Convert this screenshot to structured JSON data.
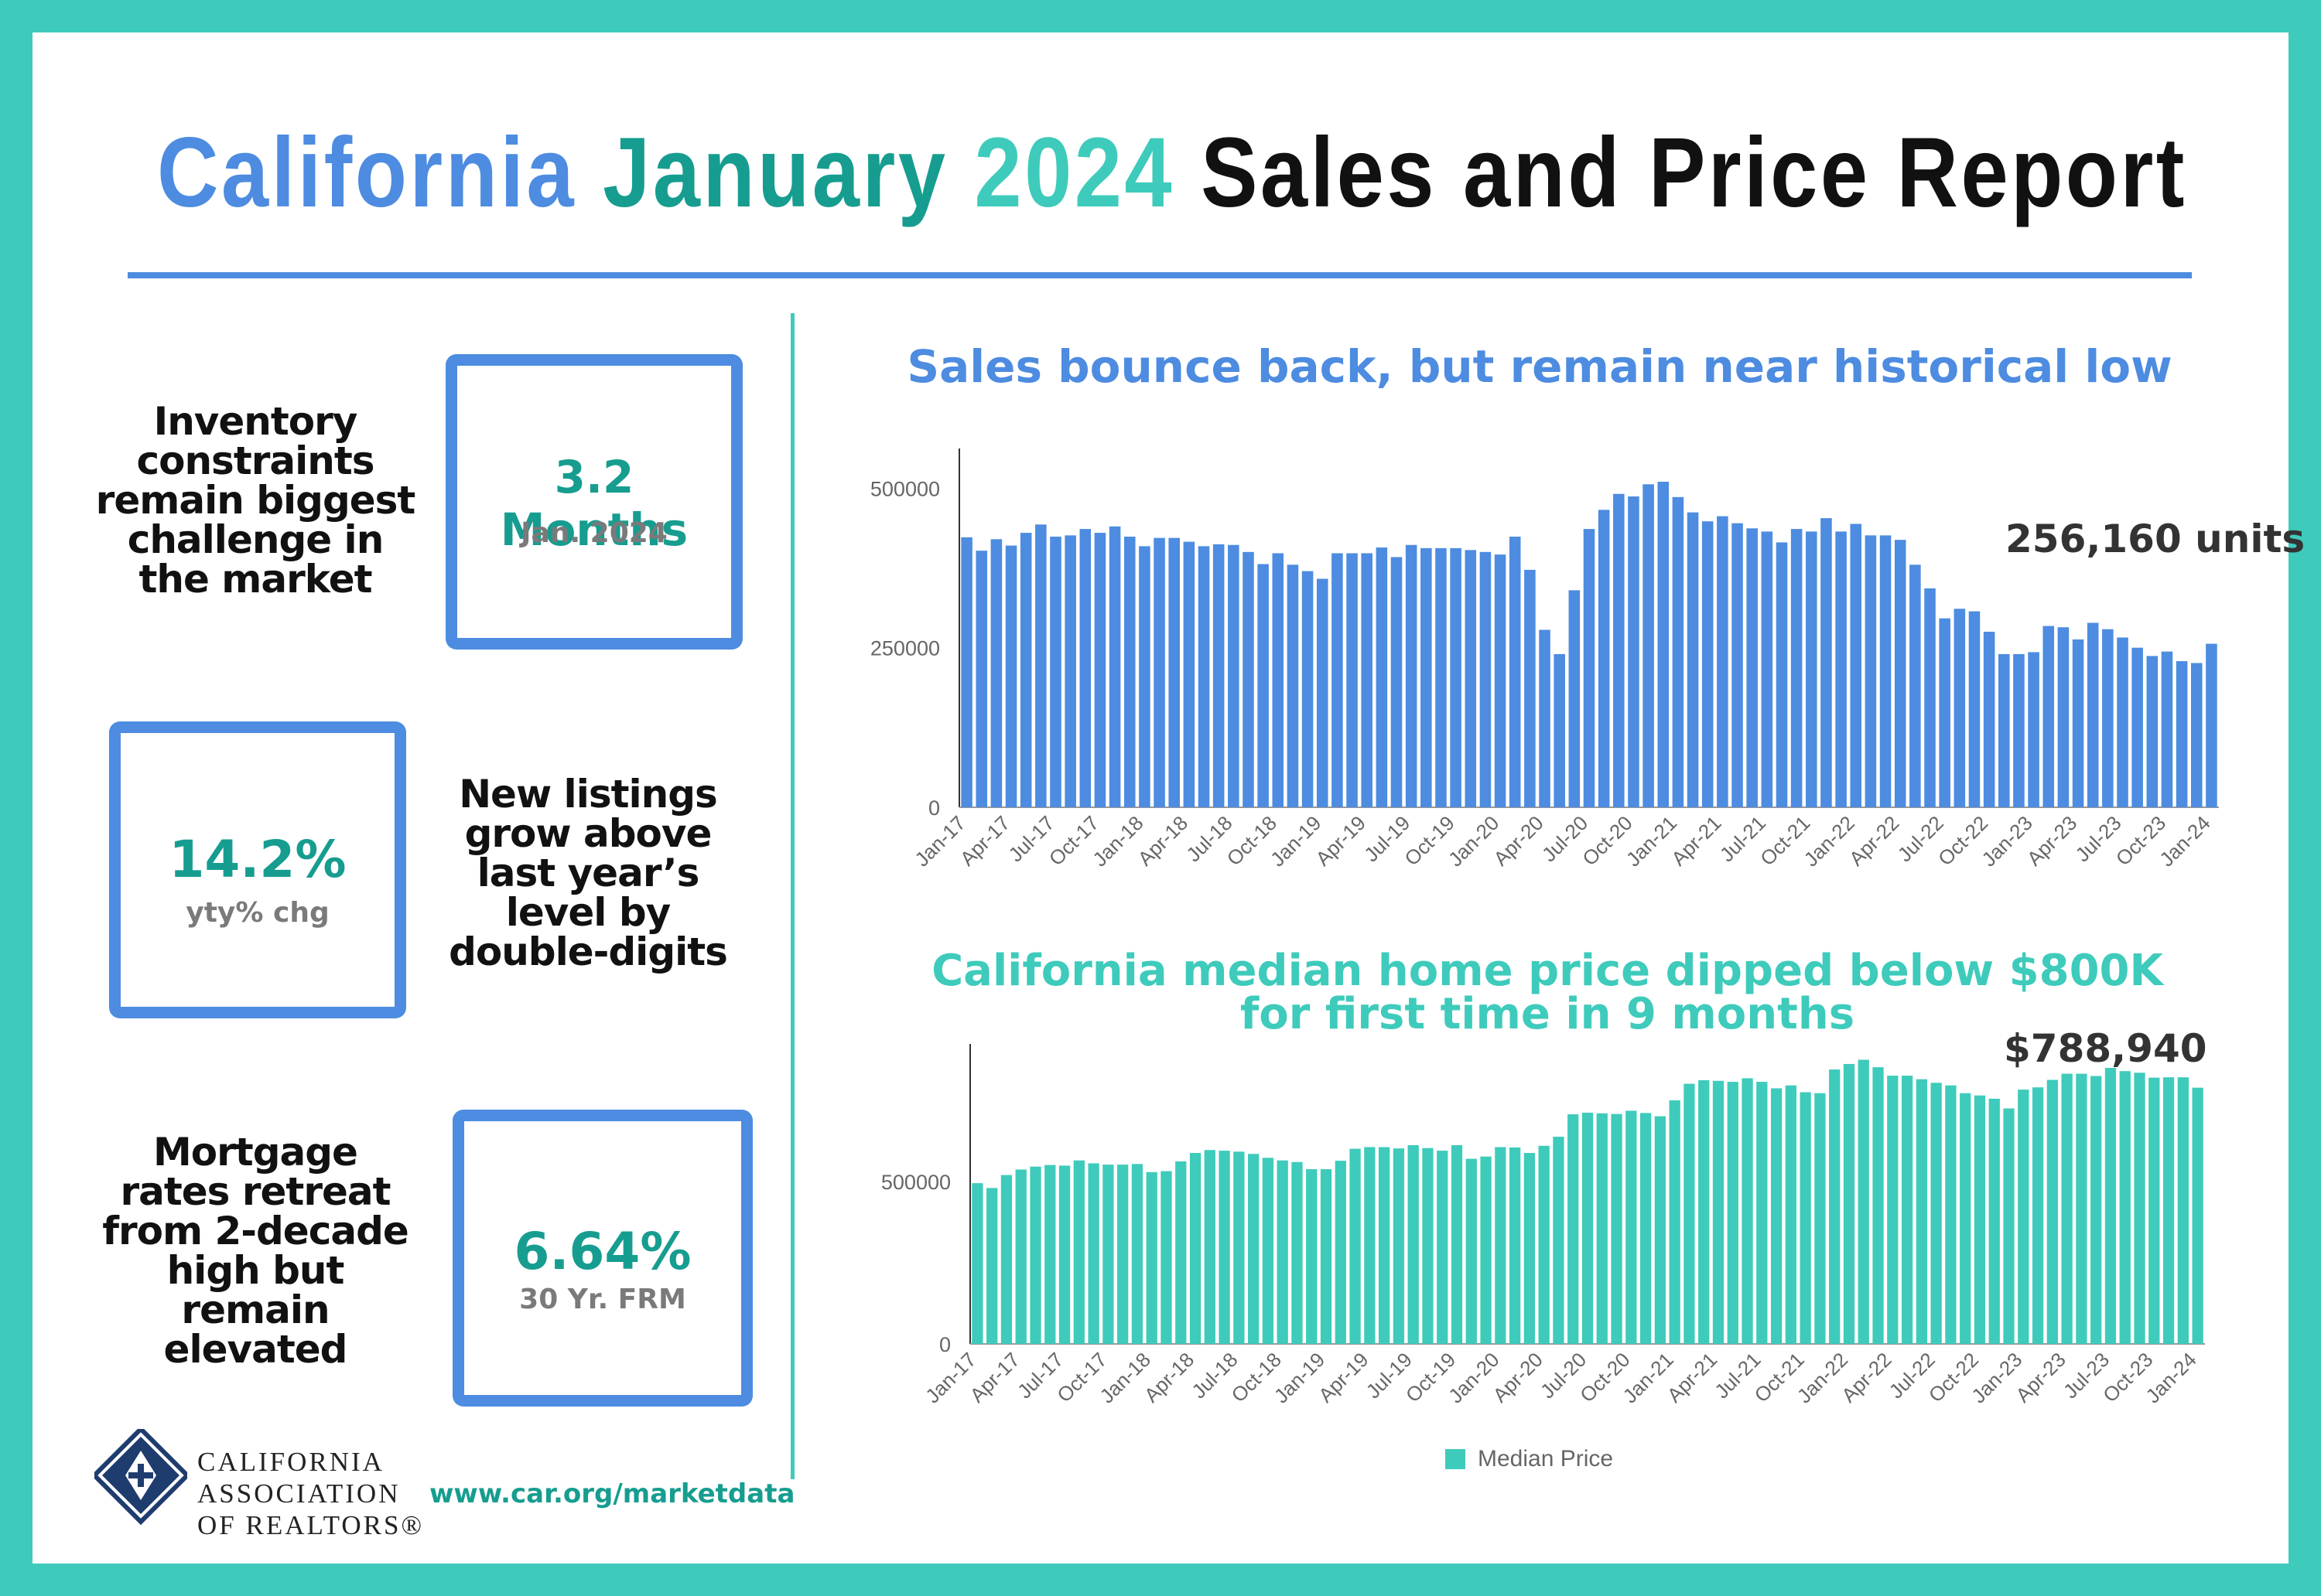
{
  "header": {
    "title_part1": "California",
    "title_part2": "January",
    "title_part3": "2024",
    "title_part4": "Sales and Price Report"
  },
  "stats": [
    {
      "text": [
        "Inventory",
        "constraints",
        "remain biggest",
        "challenge in",
        "the market"
      ],
      "value": "3.2 Months",
      "sub": "Jan. 2024"
    },
    {
      "text": [
        "New listings",
        "grow above",
        "last year’s",
        "level by",
        "double-digits"
      ],
      "value": "14.2%",
      "sub": "yty% chg"
    },
    {
      "text": [
        "Mortgage",
        "rates retreat",
        "from 2-decade",
        "high but",
        "remain",
        "elevated"
      ],
      "value": "6.64%",
      "sub": "30 Yr. FRM"
    }
  ],
  "footer": {
    "logo_line1": "CALIFORNIA",
    "logo_line2": "ASSOCIATION",
    "logo_line3": "OF REALTORS®",
    "url": "www.car.org/marketdata"
  },
  "colors": {
    "blue": "#4d8ce0",
    "teal": "#3ecbbb",
    "dark_teal": "#169d90"
  },
  "chart_data": [
    {
      "type": "bar",
      "title": "Sales bounce back, but remain near historical low",
      "callout": "256,160 units",
      "ylim": [
        0,
        550000
      ],
      "yticks": [
        0,
        250000,
        500000
      ],
      "tick_labels": [
        "Jan-17",
        "Apr-17",
        "Jul-17",
        "Oct-17",
        "Jan-18",
        "Apr-18",
        "Jul-18",
        "Oct-18",
        "Jan-19",
        "Apr-19",
        "Jul-19",
        "Oct-19",
        "Jan-20",
        "Apr-20",
        "Jul-20",
        "Oct-20",
        "Jan-21",
        "Apr-21",
        "Jul-21",
        "Oct-21",
        "Jan-22",
        "Apr-22",
        "Jul-22",
        "Oct-22",
        "Jan-23",
        "Apr-23",
        "Jul-23",
        "Oct-23",
        "Jan-24"
      ],
      "values": [
        423000,
        402000,
        420000,
        410000,
        430000,
        443000,
        424000,
        426000,
        436000,
        430000,
        440000,
        424000,
        409000,
        422000,
        422000,
        416000,
        409000,
        412000,
        411000,
        400000,
        381000,
        398000,
        380000,
        370000,
        358000,
        398000,
        398000,
        398000,
        407000,
        392000,
        411000,
        406000,
        406000,
        406000,
        403000,
        400000,
        396000,
        424000,
        372000,
        278000,
        240000,
        340000,
        436000,
        466000,
        491000,
        487000,
        506000,
        510000,
        486000,
        462000,
        448000,
        456000,
        445000,
        437000,
        432000,
        415000,
        436000,
        432000,
        453000,
        432000,
        444000,
        426000,
        426000,
        419000,
        380000,
        343000,
        296000,
        311000,
        307000,
        275000,
        240000,
        240000,
        243000,
        284000,
        282000,
        263000,
        289000,
        279000,
        266000,
        250000,
        237000,
        244000,
        229000,
        226000,
        256160
      ]
    },
    {
      "type": "bar",
      "title": "California median home price dipped below $800K for first time in 9 months",
      "callout": "$788,940",
      "legend": "Median Price",
      "ylim": [
        0,
        900000
      ],
      "yticks": [
        0,
        500000
      ],
      "tick_labels": [
        "Jan-17",
        "Apr-17",
        "Jul-17",
        "Oct-17",
        "Jan-18",
        "Apr-18",
        "Jul-18",
        "Oct-18",
        "Jan-19",
        "Apr-19",
        "Jul-19",
        "Oct-19",
        "Jan-20",
        "Apr-20",
        "Jul-20",
        "Oct-20",
        "Jan-21",
        "Apr-21",
        "Jul-21",
        "Oct-21",
        "Jan-22",
        "Apr-22",
        "Jul-22",
        "Oct-22",
        "Jan-23",
        "Apr-23",
        "Jul-23",
        "Oct-23",
        "Jan-24"
      ],
      "values": [
        495000,
        480000,
        520000,
        537000,
        546000,
        551000,
        549000,
        565000,
        556000,
        552000,
        552000,
        554000,
        529000,
        532000,
        562000,
        588000,
        597000,
        595000,
        592000,
        585000,
        573000,
        565000,
        560000,
        538000,
        538000,
        564000,
        601000,
        606000,
        606000,
        602000,
        612000,
        603000,
        595000,
        612000,
        570000,
        577000,
        606000,
        605000,
        588000,
        610000,
        638000,
        707000,
        712000,
        710000,
        708000,
        718000,
        711000,
        701000,
        750000,
        801000,
        812000,
        810000,
        807000,
        818000,
        807000,
        787000,
        796000,
        775000,
        772000,
        845000,
        862000,
        875000,
        852000,
        826000,
        826000,
        815000,
        804000,
        796000,
        772000,
        765000,
        755000,
        725000,
        783000,
        790000,
        813000,
        832000,
        832000,
        825000,
        850000,
        840000,
        835000,
        820000,
        821000,
        821000,
        788940
      ]
    }
  ]
}
